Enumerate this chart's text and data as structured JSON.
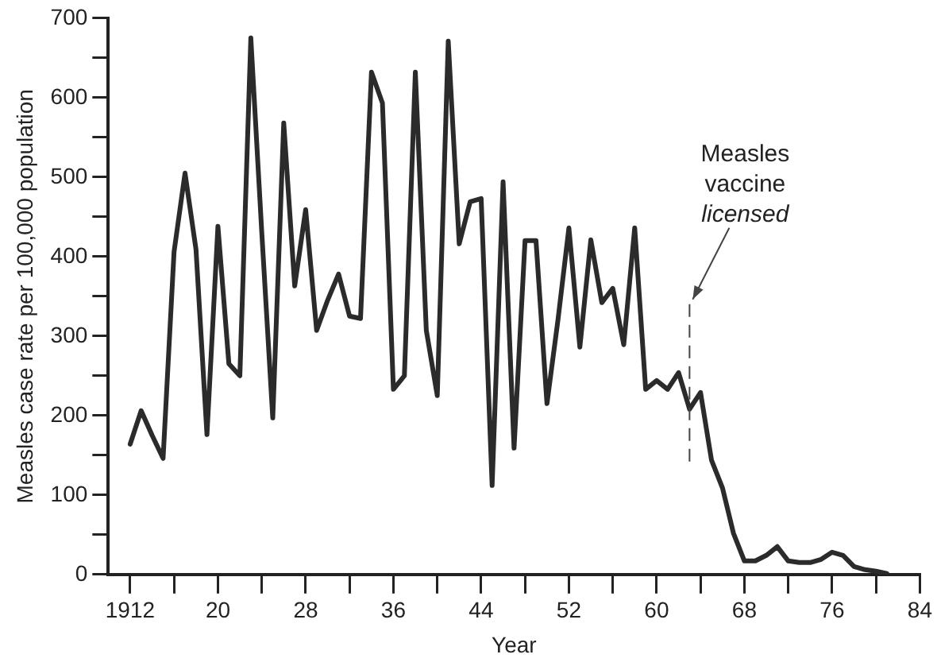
{
  "chart_data": {
    "type": "line",
    "xlabel": "Year",
    "ylabel": "Measles case rate per 100,000 population",
    "x": [
      1912,
      1913,
      1914,
      1915,
      1916,
      1917,
      1918,
      1919,
      1920,
      1921,
      1922,
      1923,
      1924,
      1925,
      1926,
      1927,
      1928,
      1929,
      1930,
      1931,
      1932,
      1933,
      1934,
      1935,
      1936,
      1937,
      1938,
      1939,
      1940,
      1941,
      1942,
      1943,
      1944,
      1945,
      1946,
      1947,
      1948,
      1949,
      1950,
      1951,
      1952,
      1953,
      1954,
      1955,
      1956,
      1957,
      1958,
      1959,
      1960,
      1961,
      1962,
      1963,
      1964,
      1965,
      1966,
      1967,
      1968,
      1969,
      1970,
      1971,
      1972,
      1973,
      1974,
      1975,
      1976,
      1977,
      1978,
      1979,
      1980,
      1981
    ],
    "series": [
      {
        "color": "#2b2b2b",
        "values": [
          164,
          206,
          175,
          146,
          406,
          505,
          409,
          176,
          438,
          265,
          250,
          675,
          430,
          197,
          568,
          363,
          459,
          307,
          345,
          378,
          325,
          322,
          632,
          593,
          233,
          250,
          632,
          307,
          225,
          671,
          416,
          469,
          473,
          112,
          494,
          159,
          420,
          420,
          215,
          320,
          436,
          286,
          421,
          342,
          360,
          289,
          436,
          233,
          244,
          233,
          254,
          208,
          229,
          144,
          109,
          52,
          17,
          17,
          24,
          35,
          17,
          15,
          15,
          19,
          28,
          24,
          10,
          6,
          4,
          1
        ]
      }
    ],
    "xlim": [
      1910,
      1984
    ],
    "ylim": [
      0,
      700
    ],
    "xticks": [
      {
        "value": 1912,
        "label": "1912"
      },
      {
        "value": 1916,
        "label": null
      },
      {
        "value": 1920,
        "label": "20"
      },
      {
        "value": 1924,
        "label": null
      },
      {
        "value": 1928,
        "label": "28"
      },
      {
        "value": 1932,
        "label": null
      },
      {
        "value": 1936,
        "label": "36"
      },
      {
        "value": 1940,
        "label": null
      },
      {
        "value": 1944,
        "label": "44"
      },
      {
        "value": 1948,
        "label": null
      },
      {
        "value": 1952,
        "label": "52"
      },
      {
        "value": 1956,
        "label": null
      },
      {
        "value": 1960,
        "label": "60"
      },
      {
        "value": 1964,
        "label": null
      },
      {
        "value": 1968,
        "label": "68"
      },
      {
        "value": 1972,
        "label": null
      },
      {
        "value": 1976,
        "label": "76"
      },
      {
        "value": 1980,
        "label": null
      },
      {
        "value": 1984,
        "label": "84"
      }
    ],
    "yticks": [
      0,
      {
        "value": 50,
        "label": null
      },
      100,
      {
        "value": 150,
        "label": null
      },
      200,
      {
        "value": 250,
        "label": null
      },
      300,
      {
        "value": 350,
        "label": null
      },
      400,
      {
        "value": 450,
        "label": null
      },
      500,
      {
        "value": 550,
        "label": null
      },
      600,
      {
        "value": 650,
        "label": null
      },
      700
    ],
    "annotations": [
      {
        "text": "Measles vaccine licensed",
        "x": 1963,
        "y": 340
      }
    ],
    "ref_lines": [
      {
        "axis": "x",
        "value": 1963,
        "line_style": "dashed",
        "color": "#444444"
      }
    ],
    "grid": false,
    "legend": false,
    "marker": "none",
    "line_style": "solid"
  }
}
